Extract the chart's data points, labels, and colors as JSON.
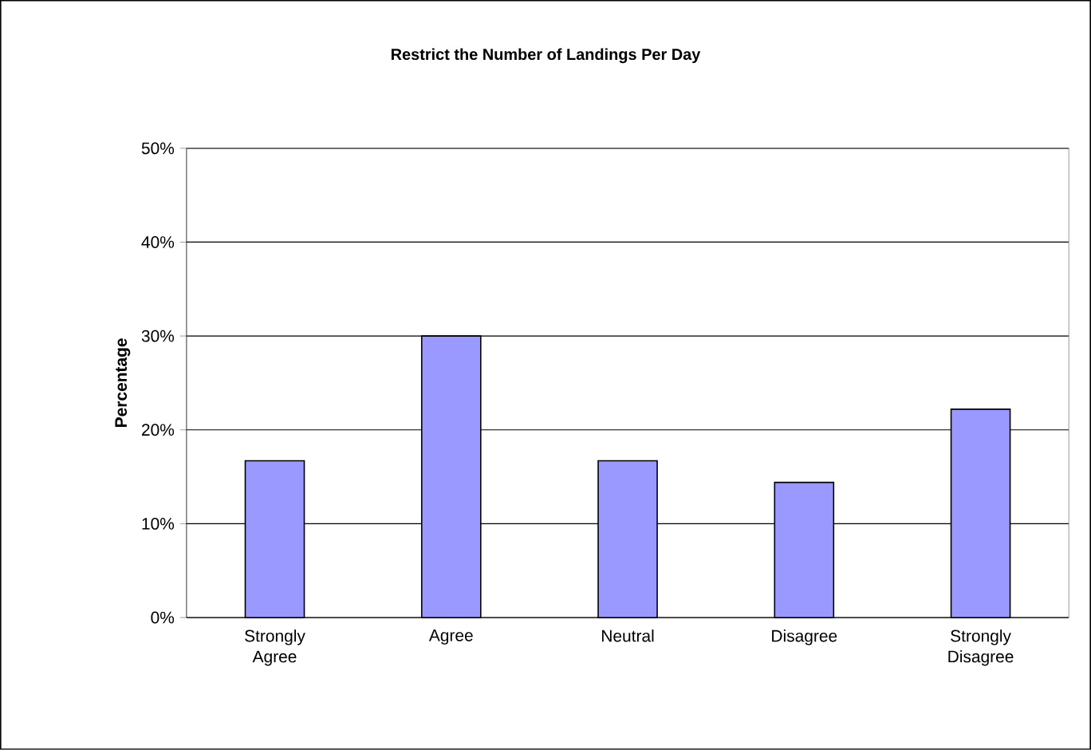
{
  "chart_data": {
    "type": "bar",
    "title": "Restrict the Number of Landings Per Day",
    "ylabel": "Percentage",
    "categories": [
      "Strongly Agree",
      "Agree",
      "Neutral",
      "Disagree",
      "Strongly Disagree"
    ],
    "values": [
      16.7,
      30,
      16.7,
      14.4,
      22.2
    ],
    "color": "#9999ff",
    "ylim": [
      0,
      50
    ],
    "yticks": [
      {
        "value": 0,
        "label": "0%"
      },
      {
        "value": 10,
        "label": "10%"
      },
      {
        "value": 20,
        "label": "20%"
      },
      {
        "value": 30,
        "label": "30%"
      },
      {
        "value": 40,
        "label": "40%"
      },
      {
        "value": 50,
        "label": "50%"
      }
    ],
    "grid": "y"
  }
}
